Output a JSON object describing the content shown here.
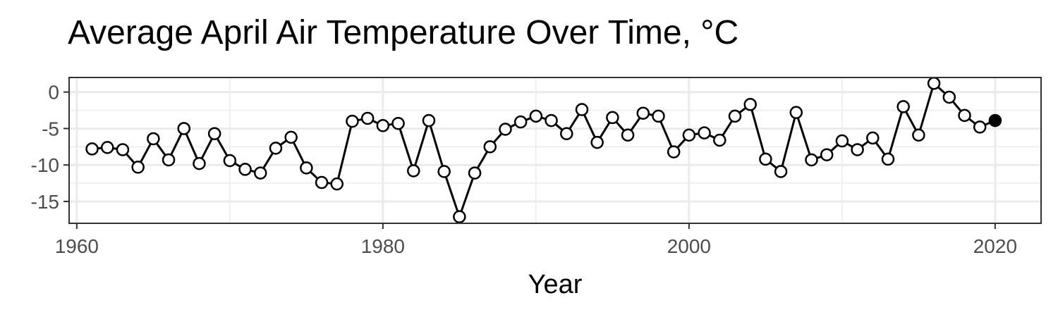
{
  "chart_data": {
    "type": "line",
    "title": "Average April Air Temperature Over Time, °C",
    "xlabel": "Year",
    "ylabel": "",
    "xlim": [
      1959.5,
      2023.0
    ],
    "ylim": [
      -18.0,
      2.0
    ],
    "x_ticks": [
      1960,
      1980,
      2000,
      2020
    ],
    "x_tick_labels": [
      "1960",
      "1980",
      "2000",
      "2020"
    ],
    "y_ticks": [
      0,
      -5,
      -10,
      -15
    ],
    "y_tick_labels": [
      "0",
      "-5",
      "-10",
      "-15"
    ],
    "grid": true,
    "legend": "none",
    "series": [
      {
        "x": [
          1961,
          1962,
          1963,
          1964,
          1965,
          1966,
          1967,
          1968,
          1969,
          1970,
          1971,
          1972,
          1973,
          1974,
          1975,
          1976,
          1977,
          1978,
          1979,
          1980,
          1981,
          1982,
          1983,
          1984,
          1985,
          1986,
          1987,
          1988,
          1989,
          1990,
          1991,
          1992,
          1993,
          1994,
          1995,
          1996,
          1997,
          1998,
          1999,
          2000,
          2001,
          2002,
          2003,
          2004,
          2005,
          2006,
          2007,
          2008,
          2009,
          2010,
          2011,
          2012,
          2013,
          2014,
          2015,
          2016,
          2017,
          2018,
          2019,
          2020
        ],
        "y": [
          -7.8,
          -7.6,
          -7.9,
          -10.3,
          -6.4,
          -9.3,
          -5.0,
          -9.8,
          -5.7,
          -9.4,
          -10.6,
          -11.1,
          -7.7,
          -6.2,
          -10.4,
          -12.4,
          -12.6,
          -4.0,
          -3.6,
          -4.6,
          -4.3,
          -10.8,
          -3.9,
          -10.9,
          -17.1,
          -11.1,
          -7.5,
          -5.1,
          -4.1,
          -3.3,
          -3.9,
          -5.7,
          -2.4,
          -6.9,
          -3.5,
          -5.9,
          -2.9,
          -3.3,
          -8.2,
          -5.9,
          -5.6,
          -6.6,
          -3.3,
          -1.7,
          -9.2,
          -10.9,
          -2.8,
          -9.3,
          -8.6,
          -6.7,
          -7.9,
          -6.3,
          -9.2,
          -2.0,
          -5.9,
          1.2,
          -0.7,
          -3.2,
          -4.8,
          -3.9
        ],
        "color": "#000000"
      }
    ]
  }
}
